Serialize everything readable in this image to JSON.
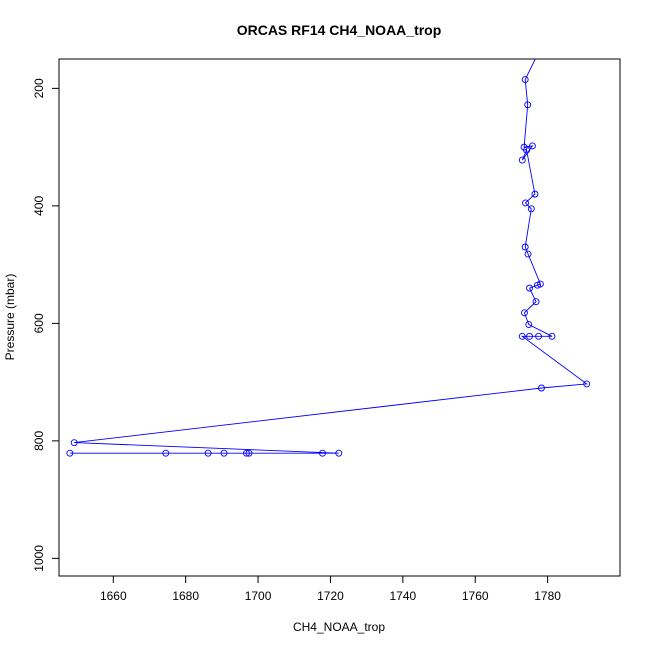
{
  "chart_data": {
    "type": "line",
    "title": "ORCAS RF14 CH4_NOAA_trop",
    "xlabel": "CH4_NOAA_trop",
    "ylabel": "Pressure (mbar)",
    "xlim": [
      1645,
      1800
    ],
    "ylim": [
      1030,
      150
    ],
    "y_reversed": true,
    "x_ticks": [
      1660,
      1680,
      1700,
      1720,
      1740,
      1760,
      1780
    ],
    "y_ticks": [
      200,
      400,
      600,
      800,
      1000
    ],
    "series_color": "#0000ff",
    "marker": "open-circle",
    "grid": false,
    "points": [
      {
        "x": 1779,
        "y": 120
      },
      {
        "x": 1773.8,
        "y": 185
      },
      {
        "x": 1774.5,
        "y": 228
      },
      {
        "x": 1773.5,
        "y": 300
      },
      {
        "x": 1775.8,
        "y": 298
      },
      {
        "x": 1773.0,
        "y": 322
      },
      {
        "x": 1774.2,
        "y": 305
      },
      {
        "x": 1776.5,
        "y": 380
      },
      {
        "x": 1773.9,
        "y": 395
      },
      {
        "x": 1775.5,
        "y": 405
      },
      {
        "x": 1773.8,
        "y": 470
      },
      {
        "x": 1774.6,
        "y": 482
      },
      {
        "x": 1778.0,
        "y": 533
      },
      {
        "x": 1777.2,
        "y": 535
      },
      {
        "x": 1775.0,
        "y": 540
      },
      {
        "x": 1776.8,
        "y": 563
      },
      {
        "x": 1773.6,
        "y": 582
      },
      {
        "x": 1774.8,
        "y": 602
      },
      {
        "x": 1781.2,
        "y": 622
      },
      {
        "x": 1777.5,
        "y": 622
      },
      {
        "x": 1775.0,
        "y": 622
      },
      {
        "x": 1773.0,
        "y": 622
      },
      {
        "x": 1790.8,
        "y": 703
      },
      {
        "x": 1778.3,
        "y": 710
      },
      {
        "x": 1649.2,
        "y": 803
      },
      {
        "x": 1722.3,
        "y": 821
      },
      {
        "x": 1717.8,
        "y": 821
      },
      {
        "x": 1697.5,
        "y": 821
      },
      {
        "x": 1696.8,
        "y": 821
      },
      {
        "x": 1690.6,
        "y": 821
      },
      {
        "x": 1686.2,
        "y": 821
      },
      {
        "x": 1674.5,
        "y": 821
      },
      {
        "x": 1648.0,
        "y": 821
      }
    ]
  }
}
